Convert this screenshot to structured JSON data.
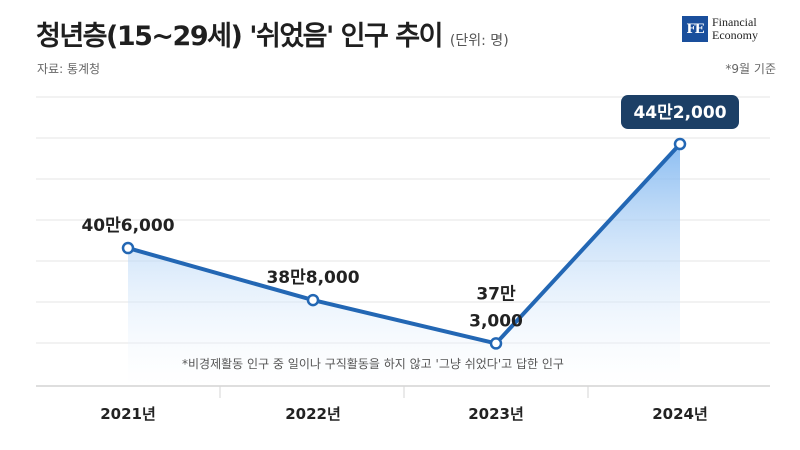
{
  "header": {
    "title": "청년층(15~29세) '쉬었음' 인구 추이",
    "unit": "(단위: 명)",
    "source": "자료: 통계청",
    "basis": "*9월 기준"
  },
  "logo": {
    "mark": "FE",
    "line1": "Financial",
    "line2": "Economy",
    "color": "#1a4f9c"
  },
  "chart_data": {
    "type": "area",
    "categories": [
      "2021년",
      "2022년",
      "2023년",
      "2024년"
    ],
    "values": [
      406000,
      388000,
      373000,
      442000
    ],
    "data_labels": [
      "40만6,000",
      "38만8,000",
      "37만\n3,000",
      "44만2,000"
    ],
    "highlight_index": 3,
    "title": "청년층(15~29세) '쉬었음' 인구 추이",
    "xlabel": "",
    "ylabel": "",
    "ylim": [
      360000,
      450000
    ],
    "grid": true,
    "footnote": "*비경제활동 인구 중 일이나 구직활동을 하지 않고 '그냥 쉬었다'고 답한 인구",
    "colors": {
      "line": "#2367b4",
      "area_top": "#7fb6f0",
      "area_bottom": "#ffffff",
      "highlight_badge": "#1c3f66",
      "grid": "#e6e6e6"
    }
  }
}
